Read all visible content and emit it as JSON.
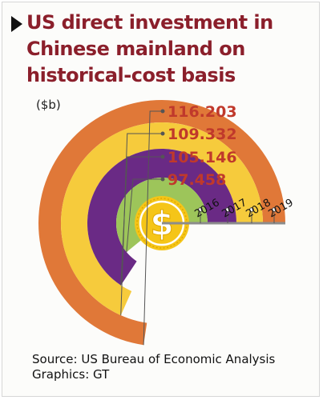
{
  "title": "US direct investment in Chinese mainland on historical-cost basis",
  "unit_label": "($b)",
  "source": "Source: US Bureau of Economic Analysis",
  "credit": "Graphics: GT",
  "icon": "dollar-coin-icon",
  "colors": {
    "title": "#8b1f2b",
    "value_label": "#c0392b",
    "ring_2016": "#9dc55a",
    "ring_2017": "#6a2a85",
    "ring_2018": "#f6cb3c",
    "ring_2019": "#e07838",
    "coin": "#f5c518",
    "baseline": "#8c8c8c"
  },
  "chart_data": {
    "type": "radial-bar",
    "categories": [
      "2016",
      "2017",
      "2018",
      "2019"
    ],
    "values": [
      97.458,
      105.146,
      109.332,
      116.203
    ],
    "value_labels": [
      "97.458",
      "105.146",
      "109.332",
      "116.203"
    ],
    "ylabel": "($b)"
  }
}
